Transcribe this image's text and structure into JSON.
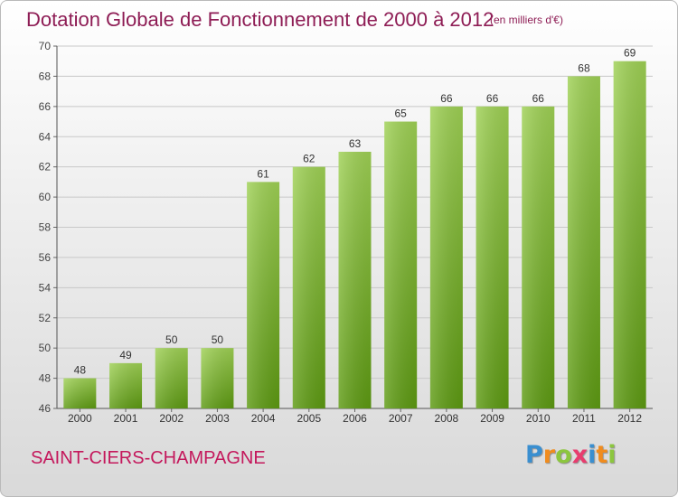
{
  "header": {
    "title": "Dotation Globale de Fonctionnement de 2000 à 2012",
    "unit": "(en milliers d'€)"
  },
  "footer": {
    "commune": "SAINT-CIERS-CHAMPAGNE",
    "logo_text": "Proxiti",
    "logo_colors": [
      "#3a8fd0",
      "#f08c1e",
      "#8cc63e",
      "#e83c6e",
      "#3a8fd0",
      "#f08c1e",
      "#8cc63e"
    ]
  },
  "colors": {
    "title": "#8e1d55",
    "commune": "#c4185c",
    "bar_light": "#9fd155",
    "bar_dark": "#5d9a12",
    "grid": "#c8c8c8"
  },
  "chart_data": {
    "type": "bar",
    "title": "Dotation Globale de Fonctionnement de 2000 à 2012",
    "subtitle": "(en milliers d'€)",
    "xlabel": "",
    "ylabel": "",
    "categories": [
      "2000",
      "2001",
      "2002",
      "2003",
      "2004",
      "2005",
      "2006",
      "2007",
      "2008",
      "2009",
      "2010",
      "2011",
      "2012"
    ],
    "values": [
      48,
      49,
      50,
      50,
      61,
      62,
      63,
      65,
      66,
      66,
      66,
      68,
      69
    ],
    "ylim": [
      46,
      70
    ],
    "yticks": [
      46,
      48,
      50,
      52,
      54,
      56,
      58,
      60,
      62,
      64,
      66,
      68,
      70
    ],
    "grid": true,
    "data_labels": true
  }
}
